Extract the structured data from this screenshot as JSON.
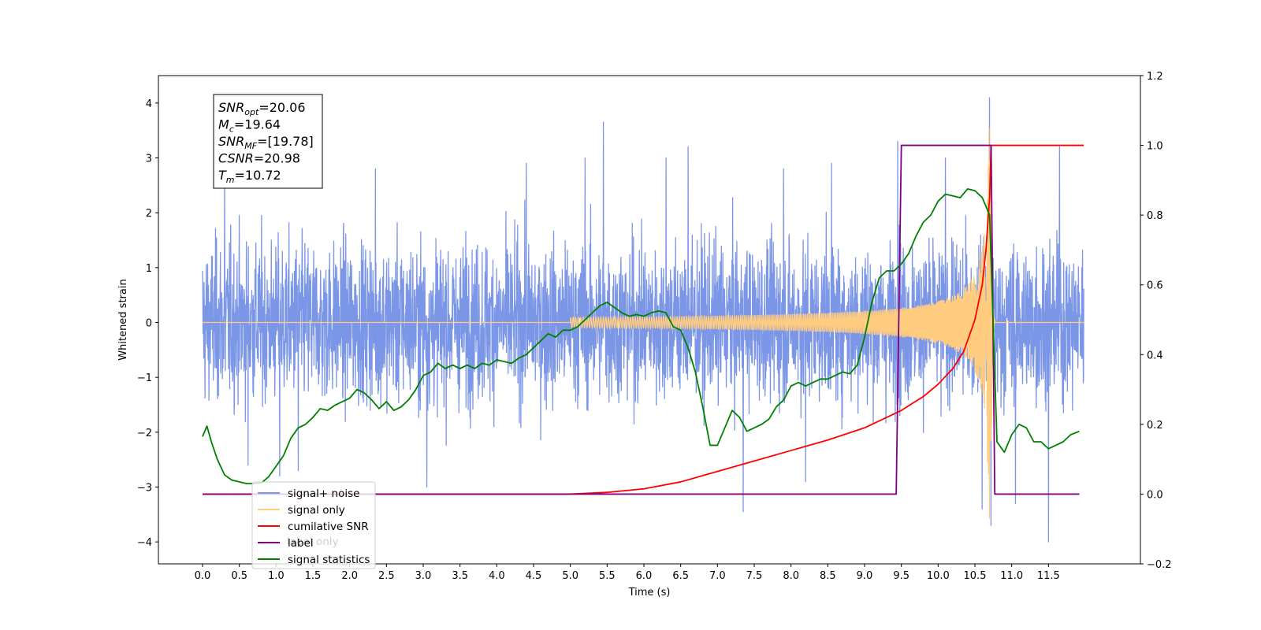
{
  "chart_data": {
    "type": "line",
    "xlabel": "Time (s)",
    "ylabel": "Whitened strain",
    "xlim": [
      -0.6,
      12.75
    ],
    "ylim": [
      -4.4,
      4.5
    ],
    "y2lim": [
      -0.2,
      1.2
    ],
    "x_ticks": [
      0.0,
      0.5,
      1.0,
      1.5,
      2.0,
      2.5,
      3.0,
      3.5,
      4.0,
      4.5,
      5.0,
      5.5,
      6.0,
      6.5,
      7.0,
      7.5,
      8.0,
      8.5,
      9.0,
      9.5,
      10.0,
      10.5,
      11.0,
      11.5
    ],
    "x_tick_labels": [
      "0.0",
      "0.5",
      "1.0",
      "1.5",
      "2.0",
      "2.5",
      "3.0",
      "3.5",
      "4.0",
      "4.5",
      "5.0",
      "5.5",
      "6.0",
      "6.5",
      "7.0",
      "7.5",
      "8.0",
      "8.5",
      "9.0",
      "9.5",
      "10.0",
      "10.5",
      "11.0",
      "11.5"
    ],
    "y_ticks": [
      -4,
      -3,
      -2,
      -1,
      0,
      1,
      2,
      3,
      4
    ],
    "y_tick_labels": [
      "−4",
      "−3",
      "−2",
      "−1",
      "0",
      "1",
      "2",
      "3",
      "4"
    ],
    "y2_ticks": [
      -0.2,
      0.0,
      0.2,
      0.4,
      0.6,
      0.8,
      1.0,
      1.2
    ],
    "y2_tick_labels": [
      "−0.2",
      "0.0",
      "0.2",
      "0.4",
      "0.6",
      "0.8",
      "1.0",
      "1.2"
    ],
    "annotation": {
      "lines": [
        {
          "sym": "SNR",
          "sub": "opt",
          "value": "=20.06"
        },
        {
          "sym": "M",
          "sub": "c",
          "value": "=19.64"
        },
        {
          "sym": "SNR",
          "sub": "MF",
          "value": "=[19.78]"
        },
        {
          "sym": "CSNR",
          "sub": "",
          "value": "=20.98"
        },
        {
          "sym": "T",
          "sub": "m",
          "value": "=10.72"
        }
      ]
    },
    "legend": {
      "placement": "lower-left",
      "entries": [
        {
          "label": "signal+ noise",
          "color": "#7b96e6"
        },
        {
          "label": "signal only",
          "color": "#ffcc80"
        },
        {
          "label": "cumilative SNR",
          "color": "#ff0000"
        },
        {
          "label": "label",
          "color": "#800080"
        },
        {
          "label": "signal statistics",
          "color": "#008000"
        }
      ],
      "occluded_text": [
        "label only"
      ]
    },
    "series": [
      {
        "name": "signal+ noise",
        "axis": "left",
        "color": "#7b96e6",
        "kind": "noise",
        "t_start": 0.0,
        "t_end": 11.98,
        "typical_amplitude": 1.0,
        "spikes": [
          {
            "t": 0.3,
            "y": 2.9
          },
          {
            "t": 0.62,
            "y": -2.6
          },
          {
            "t": 1.05,
            "y": -2.8
          },
          {
            "t": 1.3,
            "y": -2.7
          },
          {
            "t": 2.35,
            "y": 2.8
          },
          {
            "t": 3.05,
            "y": -3.0
          },
          {
            "t": 4.4,
            "y": 2.9
          },
          {
            "t": 5.2,
            "y": 3.0
          },
          {
            "t": 5.45,
            "y": 3.65
          },
          {
            "t": 6.3,
            "y": 3.0
          },
          {
            "t": 6.6,
            "y": 3.2
          },
          {
            "t": 7.35,
            "y": -3.45
          },
          {
            "t": 7.9,
            "y": 2.8
          },
          {
            "t": 8.2,
            "y": -2.9
          },
          {
            "t": 8.55,
            "y": 2.9
          },
          {
            "t": 9.45,
            "y": 3.3
          },
          {
            "t": 10.1,
            "y": 3.0
          },
          {
            "t": 10.6,
            "y": -3.4
          },
          {
            "t": 10.7,
            "y": 4.1
          },
          {
            "t": 10.72,
            "y": -3.7
          },
          {
            "t": 11.05,
            "y": -3.3
          },
          {
            "t": 11.5,
            "y": -4.0
          },
          {
            "t": 11.65,
            "y": 3.2
          }
        ]
      },
      {
        "name": "signal only",
        "axis": "left",
        "color": "#ffcc80",
        "kind": "chirp",
        "t_start": 0.0,
        "t_end": 11.98,
        "t_merger": 10.72,
        "peak": 3.6
      },
      {
        "name": "cumilative SNR",
        "axis": "right",
        "color": "#ff0000",
        "x": [
          0.0,
          5.0,
          5.5,
          6.0,
          6.5,
          7.0,
          7.5,
          8.0,
          8.5,
          9.0,
          9.5,
          9.8,
          10.0,
          10.2,
          10.35,
          10.5,
          10.6,
          10.65,
          10.7,
          10.72,
          11.98
        ],
        "y": [
          0.0,
          0.0,
          0.005,
          0.015,
          0.035,
          0.065,
          0.095,
          0.125,
          0.155,
          0.19,
          0.24,
          0.28,
          0.315,
          0.36,
          0.41,
          0.5,
          0.6,
          0.7,
          0.85,
          1.0,
          1.0
        ]
      },
      {
        "name": "label",
        "axis": "right",
        "color": "#800080",
        "x": [
          0.0,
          9.43,
          9.5,
          10.72,
          10.77,
          11.92
        ],
        "y": [
          0.0,
          0.0,
          1.0,
          1.0,
          0.0,
          0.0
        ]
      },
      {
        "name": "signal statistics",
        "axis": "right",
        "color": "#008000",
        "x": [
          0.0,
          0.06,
          0.12,
          0.2,
          0.3,
          0.4,
          0.5,
          0.6,
          0.7,
          0.8,
          0.9,
          1.0,
          1.1,
          1.2,
          1.3,
          1.4,
          1.5,
          1.6,
          1.7,
          1.8,
          1.9,
          2.0,
          2.1,
          2.2,
          2.3,
          2.4,
          2.5,
          2.6,
          2.7,
          2.8,
          2.9,
          3.0,
          3.1,
          3.2,
          3.3,
          3.4,
          3.5,
          3.6,
          3.7,
          3.8,
          3.9,
          4.0,
          4.1,
          4.2,
          4.3,
          4.4,
          4.5,
          4.6,
          4.7,
          4.8,
          4.9,
          5.0,
          5.1,
          5.2,
          5.3,
          5.4,
          5.5,
          5.6,
          5.7,
          5.8,
          5.9,
          6.0,
          6.1,
          6.2,
          6.3,
          6.4,
          6.5,
          6.6,
          6.7,
          6.8,
          6.9,
          7.0,
          7.1,
          7.2,
          7.3,
          7.4,
          7.5,
          7.6,
          7.7,
          7.8,
          7.9,
          8.0,
          8.1,
          8.2,
          8.3,
          8.4,
          8.5,
          8.6,
          8.7,
          8.8,
          8.9,
          9.0,
          9.1,
          9.2,
          9.3,
          9.4,
          9.5,
          9.6,
          9.7,
          9.8,
          9.9,
          10.0,
          10.1,
          10.2,
          10.3,
          10.4,
          10.5,
          10.6,
          10.7,
          10.8,
          10.9,
          11.0,
          11.1,
          11.2,
          11.3,
          11.4,
          11.5,
          11.6,
          11.7,
          11.8,
          11.92
        ],
        "y": [
          0.165,
          0.195,
          0.15,
          0.1,
          0.055,
          0.04,
          0.035,
          0.03,
          0.03,
          0.032,
          0.05,
          0.08,
          0.11,
          0.16,
          0.19,
          0.2,
          0.22,
          0.245,
          0.24,
          0.255,
          0.265,
          0.275,
          0.3,
          0.29,
          0.27,
          0.245,
          0.265,
          0.24,
          0.25,
          0.27,
          0.3,
          0.34,
          0.35,
          0.375,
          0.36,
          0.37,
          0.36,
          0.37,
          0.36,
          0.375,
          0.37,
          0.385,
          0.38,
          0.375,
          0.39,
          0.4,
          0.42,
          0.44,
          0.46,
          0.45,
          0.47,
          0.47,
          0.48,
          0.5,
          0.52,
          0.54,
          0.55,
          0.535,
          0.52,
          0.51,
          0.515,
          0.51,
          0.52,
          0.525,
          0.52,
          0.48,
          0.47,
          0.42,
          0.35,
          0.25,
          0.14,
          0.14,
          0.19,
          0.24,
          0.22,
          0.18,
          0.19,
          0.2,
          0.215,
          0.25,
          0.27,
          0.31,
          0.32,
          0.31,
          0.32,
          0.33,
          0.33,
          0.34,
          0.35,
          0.345,
          0.37,
          0.45,
          0.55,
          0.62,
          0.64,
          0.64,
          0.66,
          0.69,
          0.74,
          0.78,
          0.8,
          0.84,
          0.86,
          0.855,
          0.85,
          0.875,
          0.87,
          0.85,
          0.8,
          0.15,
          0.12,
          0.17,
          0.2,
          0.19,
          0.15,
          0.15,
          0.13,
          0.14,
          0.15,
          0.17,
          0.18
        ]
      }
    ]
  }
}
